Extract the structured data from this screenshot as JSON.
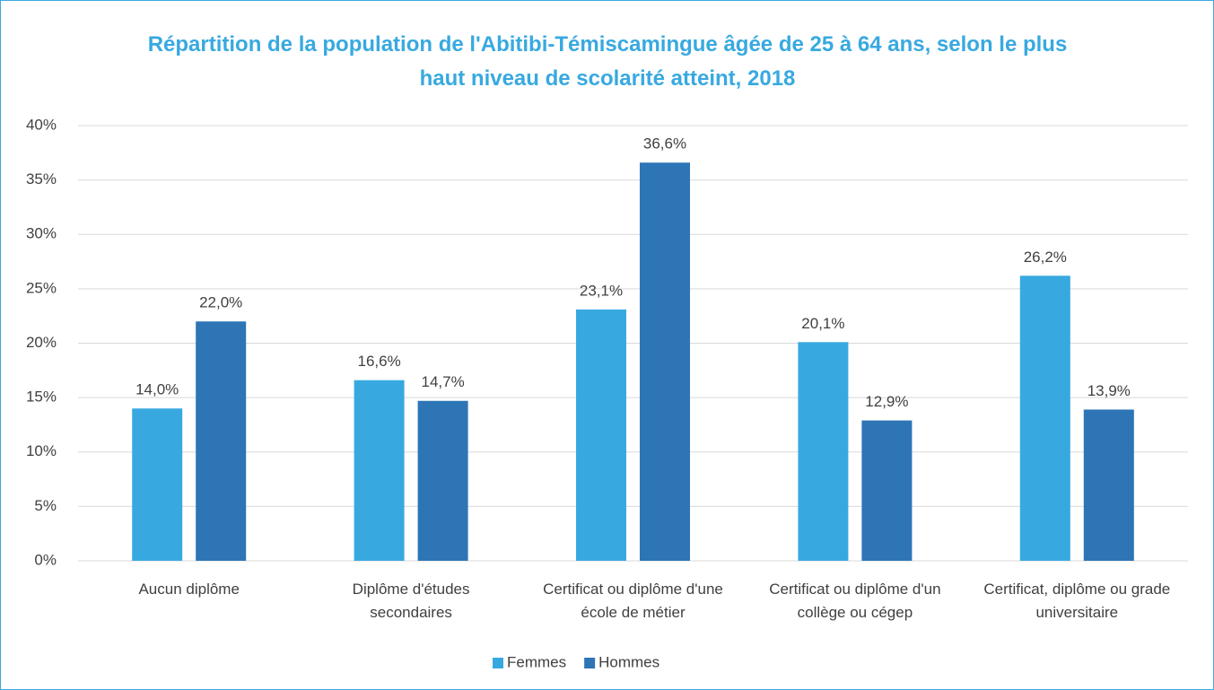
{
  "chart_data": {
    "type": "bar",
    "title": "Répartition de la population de l'Abitibi-Témiscamingue âgée de 25 à 64 ans, selon le plus haut niveau de scolarité atteint, 2018",
    "categories": [
      "Aucun diplôme",
      "Diplôme d'études secondaires",
      "Certificat ou diplôme d'une école de métier",
      "Certificat ou diplôme d'un collège ou cégep",
      "Certificat, diplôme ou grade universitaire"
    ],
    "series": [
      {
        "name": "Femmes",
        "color": "#38a9e0",
        "values": [
          14.0,
          16.6,
          23.1,
          20.1,
          26.2
        ],
        "value_labels": [
          "14,0%",
          "16,6%",
          "23,1%",
          "20,1%",
          "26,2%"
        ]
      },
      {
        "name": "Hommes",
        "color": "#2e75b6",
        "values": [
          22.0,
          14.7,
          36.6,
          12.9,
          13.9
        ],
        "value_labels": [
          "22,0%",
          "14,7%",
          "36,6%",
          "12,9%",
          "13,9%"
        ]
      }
    ],
    "ylim": [
      0,
      40
    ],
    "yticks": [
      {
        "value": 0,
        "label": "0%"
      },
      {
        "value": 5,
        "label": "5%"
      },
      {
        "value": 10,
        "label": "10%"
      },
      {
        "value": 15,
        "label": "15%"
      },
      {
        "value": 20,
        "label": "20%"
      },
      {
        "value": 25,
        "label": "25%"
      },
      {
        "value": 30,
        "label": "30%"
      },
      {
        "value": 35,
        "label": "35%"
      },
      {
        "value": 40,
        "label": "40%"
      }
    ],
    "grid": true,
    "legend": "bottom"
  }
}
